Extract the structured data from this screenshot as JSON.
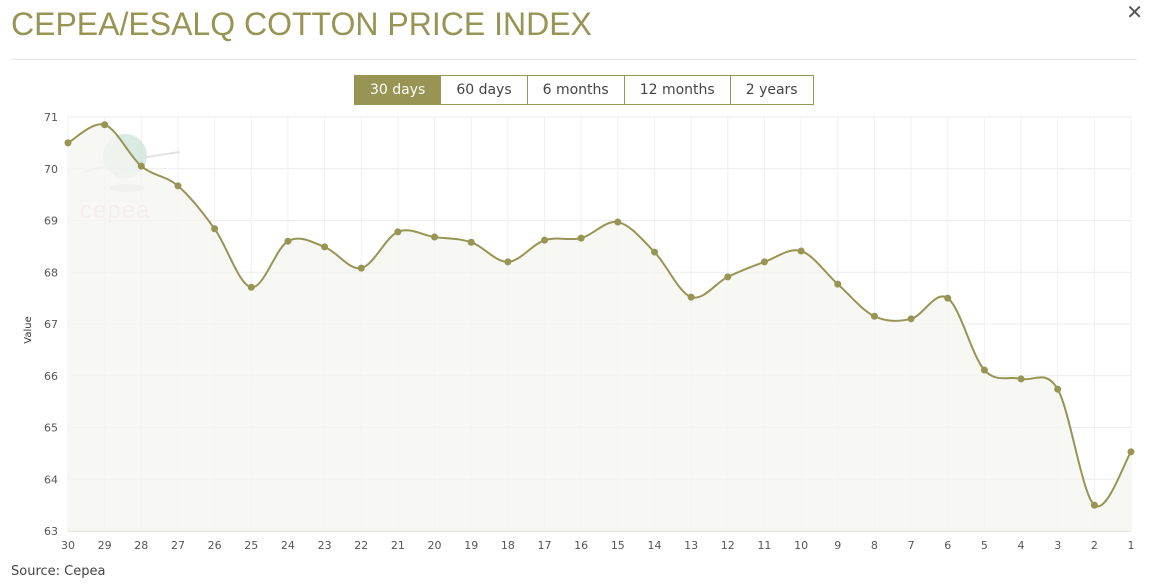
{
  "title": "CEPEA/ESALQ COTTON PRICE INDEX",
  "close_icon": "close-icon",
  "tabs": [
    {
      "label": "30 days",
      "active": true
    },
    {
      "label": "60 days"
    },
    {
      "label": "6 months"
    },
    {
      "label": "12 months"
    },
    {
      "label": "2 years"
    }
  ],
  "source": "Source: Cepea",
  "watermark": "cepea",
  "colors": {
    "accent": "#979454",
    "fill": "#f5f5f1"
  },
  "chart_data": {
    "type": "area",
    "title": "",
    "xlabel": "",
    "ylabel": "Value",
    "ylim": [
      63,
      71
    ],
    "yticks": [
      63,
      64,
      65,
      66,
      67,
      68,
      69,
      70,
      71
    ],
    "categories": [
      "30",
      "29",
      "28",
      "27",
      "26",
      "25",
      "24",
      "23",
      "22",
      "21",
      "20",
      "19",
      "18",
      "17",
      "16",
      "15",
      "14",
      "13",
      "12",
      "11",
      "10",
      "9",
      "8",
      "7",
      "6",
      "5",
      "4",
      "3",
      "2",
      "1"
    ],
    "values": [
      70.5,
      70.85,
      70.05,
      69.67,
      68.84,
      67.71,
      68.6,
      68.49,
      68.08,
      68.78,
      68.68,
      68.58,
      68.2,
      68.62,
      68.66,
      68.97,
      68.39,
      67.52,
      67.91,
      68.2,
      68.41,
      67.77,
      67.15,
      67.1,
      67.5,
      66.11,
      65.94,
      65.74,
      63.5,
      64.53
    ],
    "grid": true
  }
}
